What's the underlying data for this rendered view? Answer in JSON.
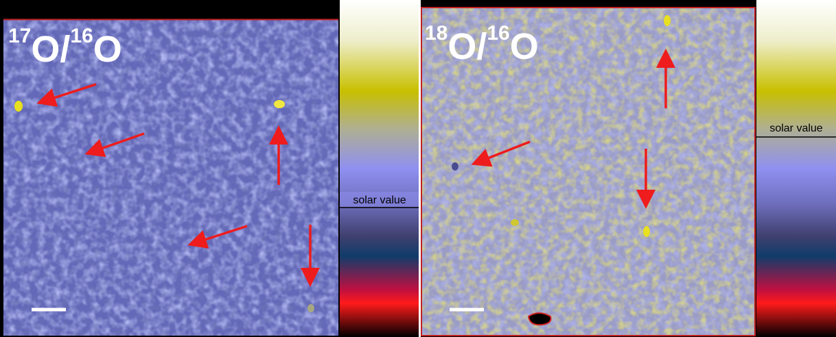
{
  "panels": [
    {
      "title": {
        "mass_a": "17",
        "element_a": "O/",
        "mass_b": "16",
        "element_b": "O"
      },
      "colorbar_label": "solar value"
    },
    {
      "title": {
        "mass_a": "18",
        "element_a": "O/",
        "mass_b": "16",
        "element_b": "O"
      },
      "colorbar_label": "solar value"
    }
  ]
}
